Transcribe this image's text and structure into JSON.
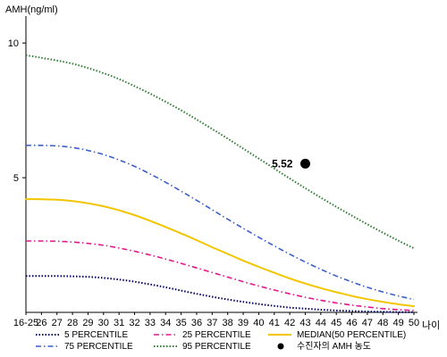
{
  "chart_data": {
    "type": "line",
    "ylabel": "AMH(ng/ml)",
    "xlabel": "나이",
    "ylim": [
      0,
      11
    ],
    "y_ticks": [
      5,
      10
    ],
    "categories": [
      "16-25",
      "26",
      "27",
      "28",
      "29",
      "30",
      "31",
      "32",
      "33",
      "34",
      "35",
      "36",
      "37",
      "38",
      "39",
      "40",
      "41",
      "42",
      "43",
      "44",
      "45",
      "46",
      "47",
      "48",
      "49",
      "50"
    ],
    "series": [
      {
        "name": "5 PERCENTILE",
        "color": "#000066",
        "style": "dotted",
        "values": [
          1.35,
          1.35,
          1.35,
          1.34,
          1.32,
          1.28,
          1.22,
          1.14,
          1.04,
          0.93,
          0.81,
          0.69,
          0.58,
          0.48,
          0.39,
          0.31,
          0.24,
          0.18,
          0.14,
          0.1,
          0.07,
          0.05,
          0.03,
          0.02,
          0.01,
          0.01
        ]
      },
      {
        "name": "25 PERCENTILE",
        "color": "#e0188c",
        "style": "dashdot",
        "values": [
          2.65,
          2.65,
          2.64,
          2.61,
          2.56,
          2.49,
          2.39,
          2.27,
          2.13,
          1.98,
          1.82,
          1.65,
          1.48,
          1.31,
          1.14,
          0.98,
          0.83,
          0.69,
          0.56,
          0.45,
          0.35,
          0.27,
          0.2,
          0.14,
          0.1,
          0.07
        ]
      },
      {
        "name": "MEDIAN(50 PERCENTILE)",
        "color": "#f2c500",
        "style": "solid",
        "values": [
          4.2,
          4.2,
          4.18,
          4.13,
          4.05,
          3.94,
          3.79,
          3.61,
          3.4,
          3.17,
          2.93,
          2.68,
          2.42,
          2.17,
          1.92,
          1.69,
          1.47,
          1.26,
          1.07,
          0.9,
          0.75,
          0.61,
          0.49,
          0.39,
          0.3,
          0.23
        ]
      },
      {
        "name": "75 PERCENTILE",
        "color": "#3a5fc8",
        "style": "dashdot",
        "values": [
          6.2,
          6.2,
          6.18,
          6.12,
          6.01,
          5.86,
          5.66,
          5.42,
          5.14,
          4.83,
          4.5,
          4.16,
          3.81,
          3.46,
          3.12,
          2.79,
          2.47,
          2.16,
          1.87,
          1.6,
          1.35,
          1.13,
          0.93,
          0.76,
          0.61,
          0.48
        ]
      },
      {
        "name": "95 PERCENTILE",
        "color": "#2e7d32",
        "style": "dotted",
        "values": [
          9.55,
          9.45,
          9.35,
          9.23,
          9.07,
          8.88,
          8.66,
          8.4,
          8.12,
          7.82,
          7.5,
          7.16,
          6.81,
          6.45,
          6.08,
          5.71,
          5.34,
          4.97,
          4.61,
          4.26,
          3.92,
          3.59,
          3.27,
          2.96,
          2.66,
          2.38
        ]
      }
    ],
    "marker": {
      "legend_label": "수진자의 AMH 농도",
      "x": "43",
      "y": 5.52,
      "label": "5.52",
      "color": "#000000"
    }
  }
}
